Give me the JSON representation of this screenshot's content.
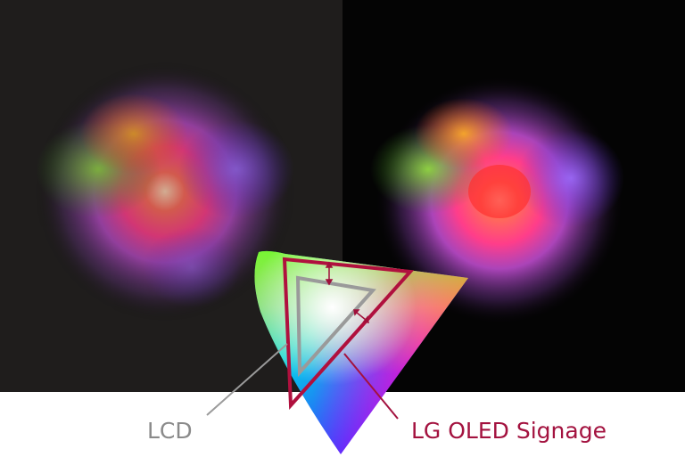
{
  "labels": {
    "lcd": "LCD",
    "oled": "LG OLED Signage"
  }
}
